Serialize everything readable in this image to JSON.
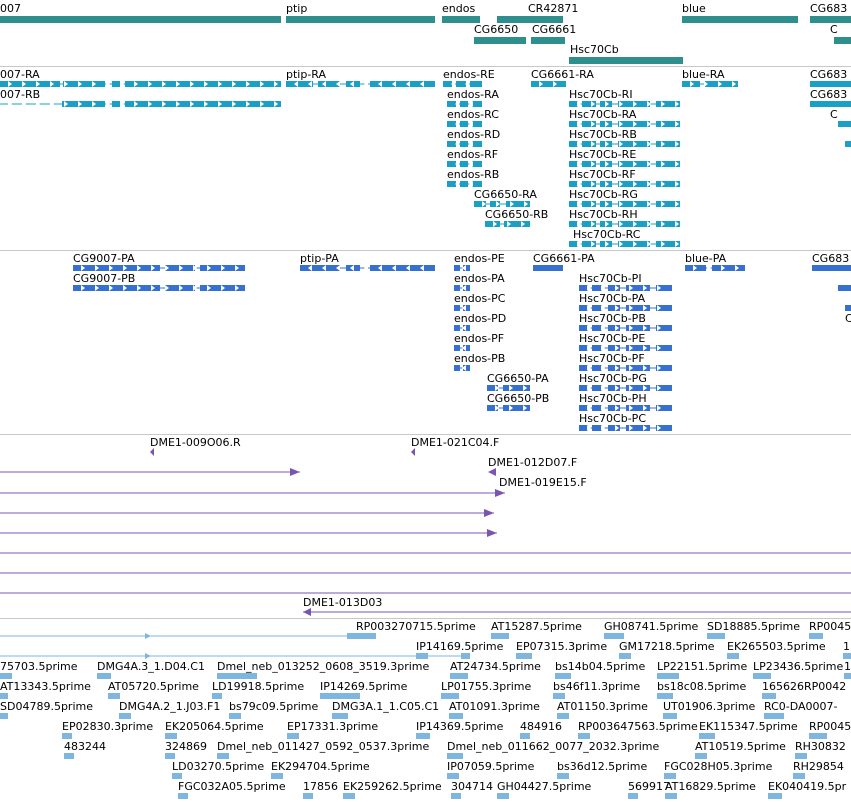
{
  "colors": {
    "gene": "#2f8e8e",
    "transcript": "#1aa0c7",
    "protein": "#3670d0",
    "clone": "#7a55b0",
    "est": "#7fb6e0",
    "divider": "#c8c8c8"
  },
  "genes": [
    {
      "label": "007",
      "name": "gene-cg9007"
    },
    {
      "label": "ptip",
      "name": "gene-ptip"
    },
    {
      "label": "endos",
      "name": "gene-endos"
    },
    {
      "label": "CR42871",
      "name": "gene-cr42871"
    },
    {
      "label": "CG6650",
      "name": "gene-cg6650"
    },
    {
      "label": "CG6661",
      "name": "gene-cg6661"
    },
    {
      "label": "Hsc70Cb",
      "name": "gene-hsc70cb"
    },
    {
      "label": "blue",
      "name": "gene-blue"
    },
    {
      "label": "CG683",
      "name": "gene-cg683"
    },
    {
      "label": "C",
      "name": "gene-c-partial"
    }
  ],
  "transcripts": [
    {
      "label": "007-RA"
    },
    {
      "label": "007-RB"
    },
    {
      "label": "ptip-RA"
    },
    {
      "label": "endos-RE"
    },
    {
      "label": "endos-RA"
    },
    {
      "label": "endos-RC"
    },
    {
      "label": "endos-RD"
    },
    {
      "label": "endos-RF"
    },
    {
      "label": "endos-RB"
    },
    {
      "label": "CG6650-RA"
    },
    {
      "label": "CG6650-RB"
    },
    {
      "label": "CG6661-RA"
    },
    {
      "label": "Hsc70Cb-RI"
    },
    {
      "label": "Hsc70Cb-RA"
    },
    {
      "label": "Hsc70Cb-RB"
    },
    {
      "label": "Hsc70Cb-RE"
    },
    {
      "label": "Hsc70Cb-RF"
    },
    {
      "label": "Hsc70Cb-RG"
    },
    {
      "label": "Hsc70Cb-RH"
    },
    {
      "label": "Hsc70Cb-RC"
    },
    {
      "label": "blue-RA"
    },
    {
      "label": "CG683"
    },
    {
      "label": "CG683"
    },
    {
      "label": "C"
    }
  ],
  "proteins": [
    {
      "label": "CG9007-PA"
    },
    {
      "label": "CG9007-PB"
    },
    {
      "label": "ptip-PA"
    },
    {
      "label": "endos-PE"
    },
    {
      "label": "endos-PA"
    },
    {
      "label": "endos-PC"
    },
    {
      "label": "endos-PD"
    },
    {
      "label": "endos-PF"
    },
    {
      "label": "endos-PB"
    },
    {
      "label": "CG6650-PA"
    },
    {
      "label": "CG6650-PB"
    },
    {
      "label": "CG6661-PA"
    },
    {
      "label": "Hsc70Cb-PI"
    },
    {
      "label": "Hsc70Cb-PA"
    },
    {
      "label": "Hsc70Cb-PB"
    },
    {
      "label": "Hsc70Cb-PE"
    },
    {
      "label": "Hsc70Cb-PF"
    },
    {
      "label": "Hsc70Cb-PG"
    },
    {
      "label": "Hsc70Cb-PH"
    },
    {
      "label": "Hsc70Cb-PC"
    },
    {
      "label": "blue-PA"
    },
    {
      "label": "CG683"
    },
    {
      "label": "C"
    }
  ],
  "clones": [
    {
      "label": "DME1-009O06.R"
    },
    {
      "label": "DME1-021C04.F"
    },
    {
      "label": "DME1-012D07.F"
    },
    {
      "label": "DME1-019E15.F"
    },
    {
      "label": "DME1-013D03"
    }
  ],
  "ests": [
    {
      "label": "RP003270715.5prime"
    },
    {
      "label": "AT15287.5prime"
    },
    {
      "label": "GH08741.5prime"
    },
    {
      "label": "SD18885.5prime"
    },
    {
      "label": "RP0045"
    },
    {
      "label": "IP14169.5prime"
    },
    {
      "label": "EP07315.3prime"
    },
    {
      "label": "GM17218.5prime"
    },
    {
      "label": "EK265503.5prime"
    },
    {
      "label": "1"
    },
    {
      "label": "75703.5prime"
    },
    {
      "label": "DMG4A.3_1.D04.C1"
    },
    {
      "label": "Dmel_neb_013252_0608_3519.3prime"
    },
    {
      "label": "AT24734.5prime"
    },
    {
      "label": "bs14b04.5prime"
    },
    {
      "label": "LP22151.5prime"
    },
    {
      "label": "LP23436.5prime"
    },
    {
      "label": "1"
    },
    {
      "label": "AT13343.5prime"
    },
    {
      "label": "AT05720.5prime"
    },
    {
      "label": "LD19918.5prime"
    },
    {
      "label": "IP14269.5prime"
    },
    {
      "label": "LP01755.3prime"
    },
    {
      "label": "bs46f11.3prime"
    },
    {
      "label": "bs18c08.5prime"
    },
    {
      "label": "165626RP0042"
    },
    {
      "label": "SD04789.5prime"
    },
    {
      "label": "DMG4A.2_1.J03.F1"
    },
    {
      "label": "bs79c09.5prime"
    },
    {
      "label": "DMG3A.1_1.C05.C1"
    },
    {
      "label": "AT01091.3prime"
    },
    {
      "label": "AT01150.3prime"
    },
    {
      "label": "UT01906.3prime"
    },
    {
      "label": "RC0-DA0007-"
    },
    {
      "label": "EP02830.3prime"
    },
    {
      "label": "EK205064.5prime"
    },
    {
      "label": "EP17331.3prime"
    },
    {
      "label": "IP14369.5prime"
    },
    {
      "label": "484916"
    },
    {
      "label": "RP003647563.5prime"
    },
    {
      "label": "EK115347.5prime"
    },
    {
      "label": "RP0045"
    },
    {
      "label": "483244"
    },
    {
      "label": "324869"
    },
    {
      "label": "Dmel_neb_011427_0592_0537.3prime"
    },
    {
      "label": "Dmel_neb_011662_0077_2032.3prime"
    },
    {
      "label": "AT10519.5prime"
    },
    {
      "label": "RH30832"
    },
    {
      "label": "LD03270.5prime"
    },
    {
      "label": "EK294704.5prime"
    },
    {
      "label": "IP07059.5prime"
    },
    {
      "label": "bs36d12.5prime"
    },
    {
      "label": "FGC028H05.3prime"
    },
    {
      "label": "RH29854"
    },
    {
      "label": "FGC032A05.5prime"
    },
    {
      "label": "17856"
    },
    {
      "label": "EK259262.5prime"
    },
    {
      "label": "304714"
    },
    {
      "label": "GH04427.5prime"
    },
    {
      "label": "569917"
    },
    {
      "label": "AT16829.5prime"
    },
    {
      "label": "EK040419.5pr"
    }
  ]
}
